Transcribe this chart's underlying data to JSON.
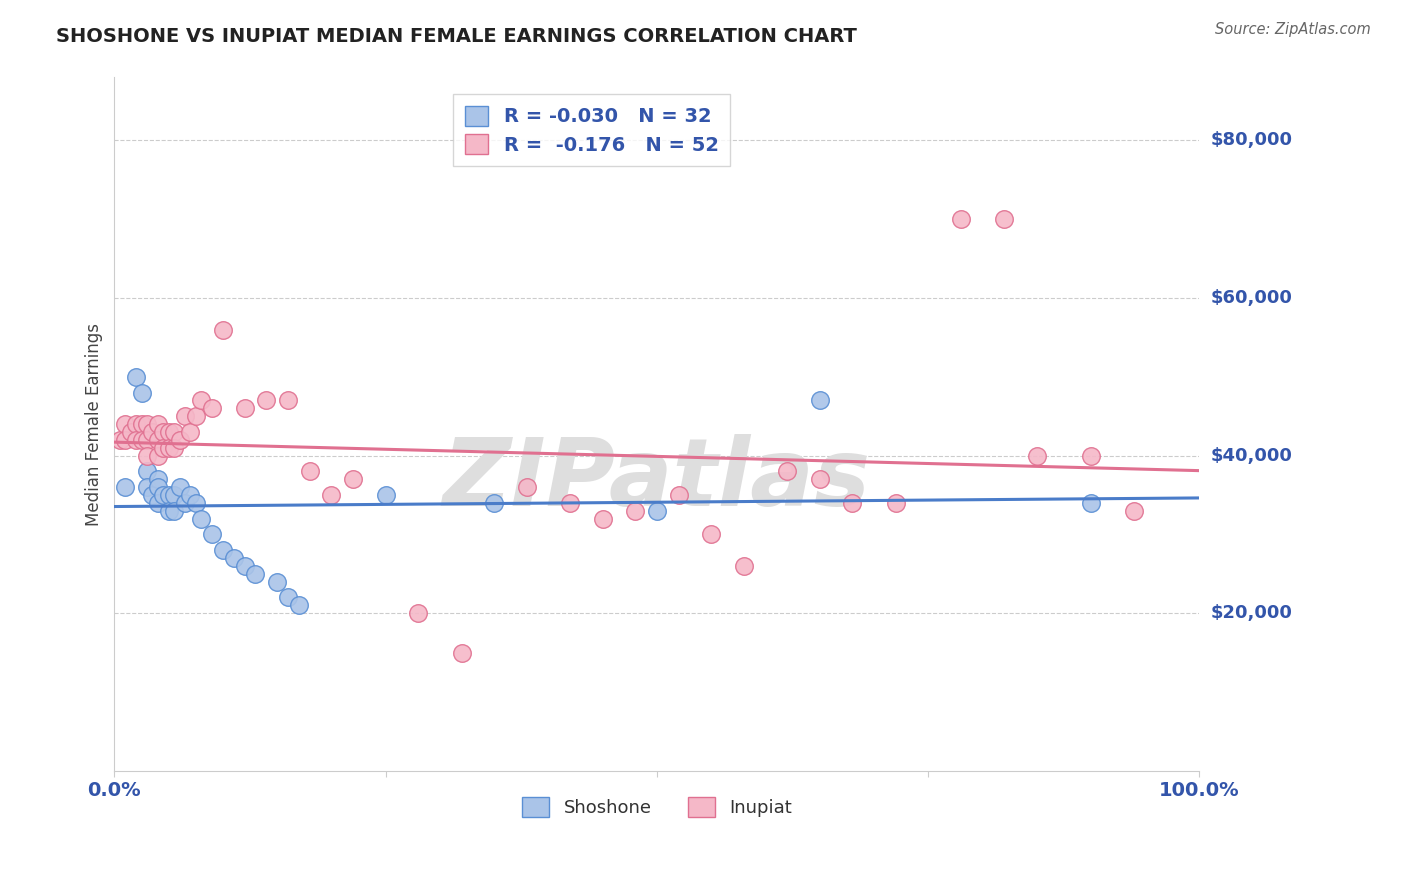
{
  "title": "SHOSHONE VS INUPIAT MEDIAN FEMALE EARNINGS CORRELATION CHART",
  "source": "Source: ZipAtlas.com",
  "ylabel": "Median Female Earnings",
  "xlim": [
    0.0,
    1.0
  ],
  "ylim": [
    0,
    88000
  ],
  "shoshone_color": "#aac4e8",
  "shoshone_edge_color": "#5a8fd4",
  "inupiat_color": "#f5b8c8",
  "inupiat_edge_color": "#e07090",
  "shoshone_line_color": "#4a7cc9",
  "inupiat_line_color": "#e07090",
  "legend_R1": "R = -0.030",
  "legend_N1": "N = 32",
  "legend_R2": "R =  -0.176",
  "legend_N2": "N = 52",
  "shoshone_label": "Shoshone",
  "inupiat_label": "Inupiat",
  "shoshone_x": [
    0.01,
    0.02,
    0.025,
    0.03,
    0.03,
    0.035,
    0.04,
    0.04,
    0.04,
    0.045,
    0.05,
    0.05,
    0.055,
    0.055,
    0.06,
    0.065,
    0.07,
    0.075,
    0.08,
    0.09,
    0.1,
    0.11,
    0.12,
    0.13,
    0.15,
    0.16,
    0.17,
    0.25,
    0.35,
    0.5,
    0.65,
    0.9
  ],
  "shoshone_y": [
    36000,
    50000,
    48000,
    38000,
    36000,
    35000,
    37000,
    36000,
    34000,
    35000,
    35000,
    33000,
    35000,
    33000,
    36000,
    34000,
    35000,
    34000,
    32000,
    30000,
    28000,
    27000,
    26000,
    25000,
    24000,
    22000,
    21000,
    35000,
    34000,
    33000,
    47000,
    34000
  ],
  "inupiat_x": [
    0.005,
    0.01,
    0.01,
    0.015,
    0.02,
    0.02,
    0.025,
    0.025,
    0.03,
    0.03,
    0.03,
    0.035,
    0.04,
    0.04,
    0.04,
    0.045,
    0.045,
    0.05,
    0.05,
    0.055,
    0.055,
    0.06,
    0.065,
    0.07,
    0.075,
    0.08,
    0.09,
    0.1,
    0.12,
    0.14,
    0.16,
    0.18,
    0.2,
    0.22,
    0.28,
    0.32,
    0.38,
    0.42,
    0.45,
    0.48,
    0.52,
    0.55,
    0.58,
    0.62,
    0.65,
    0.68,
    0.72,
    0.78,
    0.82,
    0.85,
    0.9,
    0.94
  ],
  "inupiat_y": [
    42000,
    44000,
    42000,
    43000,
    44000,
    42000,
    44000,
    42000,
    44000,
    42000,
    40000,
    43000,
    44000,
    42000,
    40000,
    43000,
    41000,
    43000,
    41000,
    43000,
    41000,
    42000,
    45000,
    43000,
    45000,
    47000,
    46000,
    56000,
    46000,
    47000,
    47000,
    38000,
    35000,
    37000,
    20000,
    15000,
    36000,
    34000,
    32000,
    33000,
    35000,
    30000,
    26000,
    38000,
    37000,
    34000,
    34000,
    70000,
    70000,
    40000,
    40000,
    33000
  ],
  "background_color": "#ffffff",
  "grid_color": "#cccccc",
  "watermark": "ZIPatlas",
  "watermark_color": "#dedede",
  "title_color": "#222222",
  "source_color": "#666666",
  "axis_label_color": "#3355aa",
  "ylabel_color": "#444444"
}
